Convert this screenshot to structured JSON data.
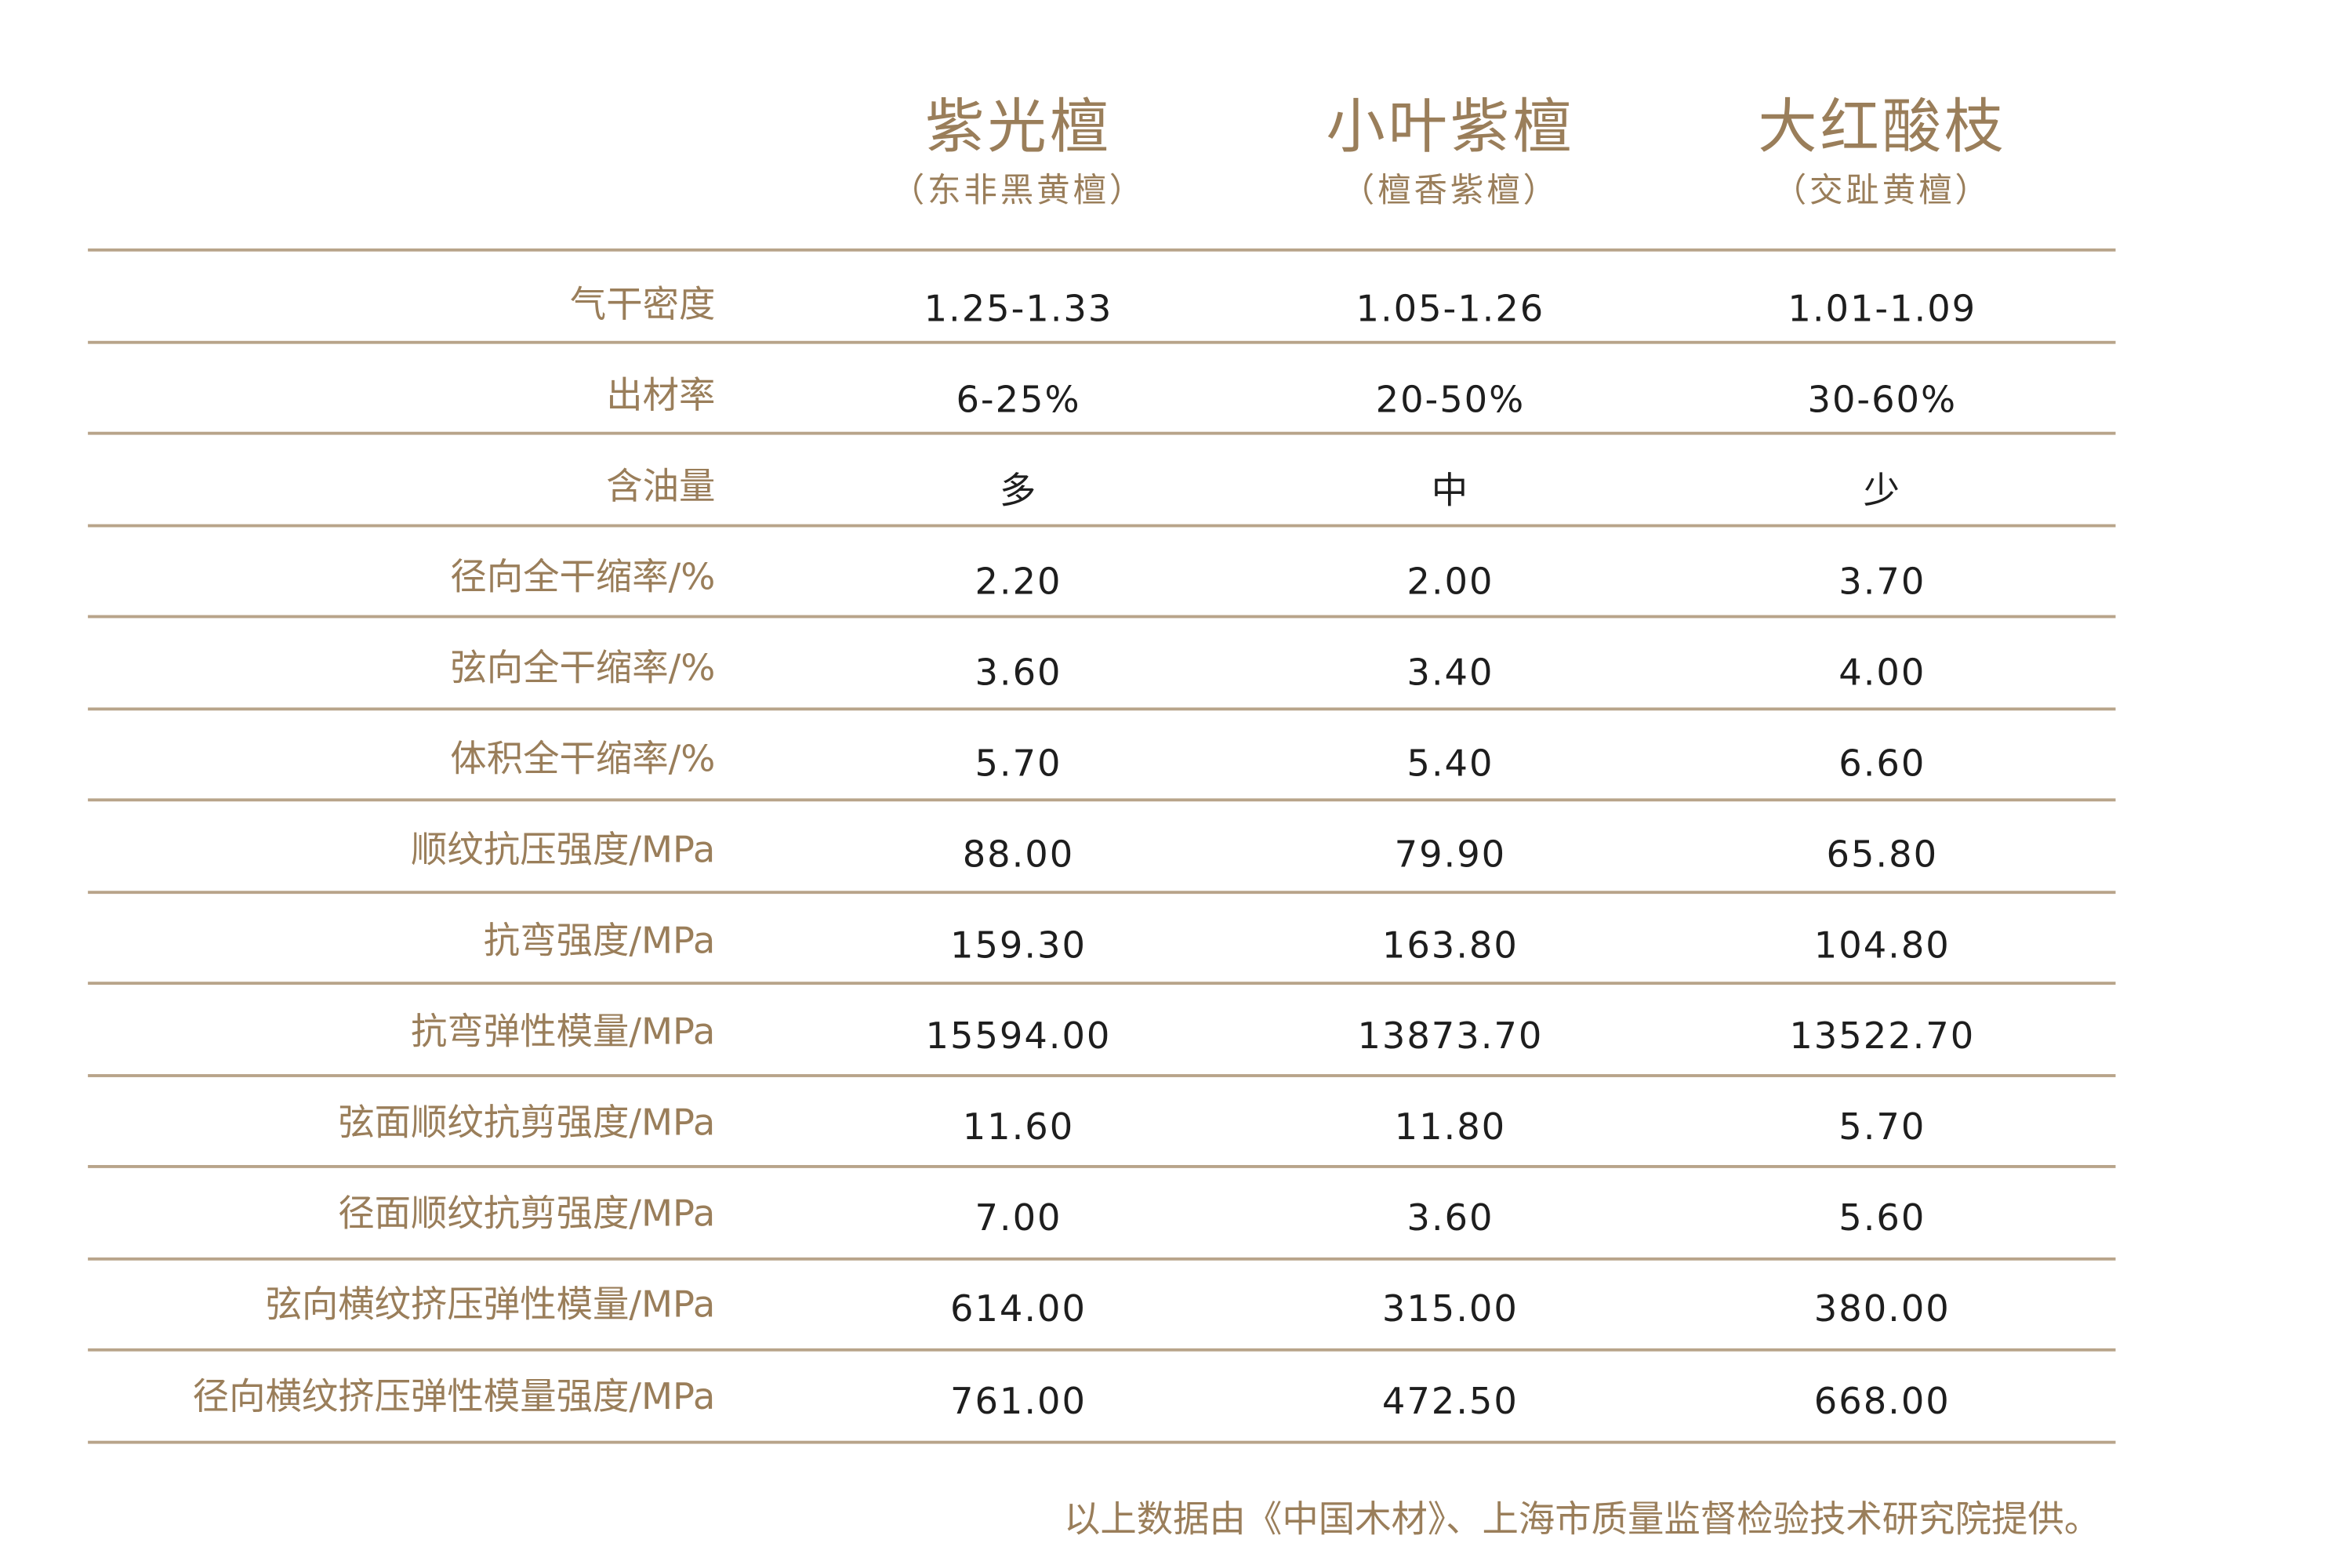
{
  "columns": [
    {
      "name": "紫光檀",
      "sub": "（东非黑黄檀）"
    },
    {
      "name": "小叶紫檀",
      "sub": "（檀香紫檀）"
    },
    {
      "name": "大红酸枝",
      "sub": "（交趾黄檀）"
    }
  ],
  "rows": [
    {
      "label": "气干密度",
      "values": [
        "1.25-1.33",
        "1.05-1.26",
        "1.01-1.09"
      ]
    },
    {
      "label": "出材率",
      "values": [
        "6-25%",
        "20-50%",
        "30-60%"
      ]
    },
    {
      "label": "含油量",
      "values": [
        "多",
        "中",
        "少"
      ]
    },
    {
      "label": "径向全干缩率/%",
      "values": [
        "2.20",
        "2.00",
        "3.70"
      ]
    },
    {
      "label": "弦向全干缩率/%",
      "values": [
        "3.60",
        "3.40",
        "4.00"
      ]
    },
    {
      "label": "体积全干缩率/%",
      "values": [
        "5.70",
        "5.40",
        "6.60"
      ]
    },
    {
      "label": "顺纹抗压强度/MPa",
      "values": [
        "88.00",
        "79.90",
        "65.80"
      ]
    },
    {
      "label": "抗弯强度/MPa",
      "values": [
        "159.30",
        "163.80",
        "104.80"
      ]
    },
    {
      "label": "抗弯弹性模量/MPa",
      "values": [
        "15594.00",
        "13873.70",
        "13522.70"
      ]
    },
    {
      "label": "弦面顺纹抗剪强度/MPa",
      "values": [
        "11.60",
        "11.80",
        "5.70"
      ]
    },
    {
      "label": "径面顺纹抗剪强度/MPa",
      "values": [
        "7.00",
        "3.60",
        "5.60"
      ]
    },
    {
      "label": "弦向横纹挤压弹性模量/MPa",
      "values": [
        "614.00",
        "315.00",
        "380.00"
      ]
    },
    {
      "label": "径向横纹挤压弹性模量强度/MPa",
      "values": [
        "761.00",
        "472.50",
        "668.00"
      ]
    }
  ],
  "footnote": "以上数据由《中国木材》、上海市质量监督检验技术研究院提供。",
  "colors": {
    "accent": "#9a7e5a",
    "rule": "#b8a48a",
    "value_text": "#1e1e1e"
  }
}
